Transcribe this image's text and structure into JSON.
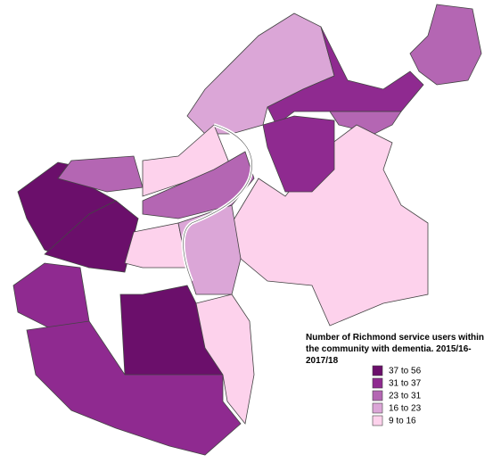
{
  "title": "Number of Richmond service users within the community with dementia. 2015/16-2017/18",
  "legend": [
    {
      "label": "37 to 56",
      "color": "#6b0f6b"
    },
    {
      "label": "31 to 37",
      "color": "#8f2a90"
    },
    {
      "label": "23 to 31",
      "color": "#b466b3"
    },
    {
      "label": "16 to 23",
      "color": "#dba6d7"
    },
    {
      "label": " 9 to 16",
      "color": "#fdd2ec"
    }
  ]
}
